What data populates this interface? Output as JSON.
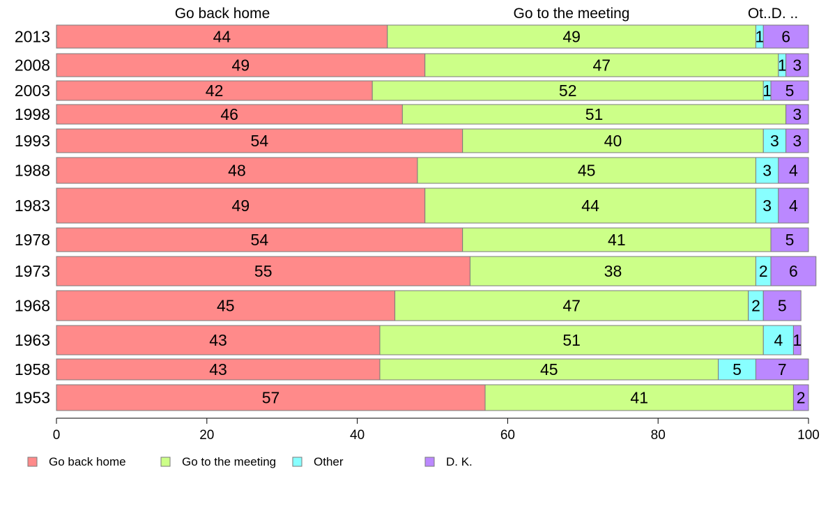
{
  "chart_data": {
    "type": "bar",
    "orientation": "horizontal",
    "stacked": true,
    "title": "",
    "xlabel": "",
    "ylabel": "",
    "xlim": [
      0,
      100
    ],
    "x_ticks": [
      0,
      20,
      40,
      60,
      80,
      100
    ],
    "grid": false,
    "legend_position": "bottom",
    "column_headers": [
      "Go back home",
      "Go to the meeting",
      "Ot..D. .."
    ],
    "categories": [
      "2013",
      "2008",
      "2003",
      "1998",
      "1993",
      "1988",
      "1983",
      "1978",
      "1973",
      "1968",
      "1963",
      "1958",
      "1953"
    ],
    "series": [
      {
        "name": "Go back home",
        "color": "#ff8a8a",
        "values": [
          44,
          49,
          42,
          46,
          54,
          48,
          49,
          54,
          55,
          45,
          43,
          43,
          57
        ]
      },
      {
        "name": "Go to the meeting",
        "color": "#ccff88",
        "values": [
          49,
          47,
          52,
          51,
          40,
          45,
          44,
          41,
          38,
          47,
          51,
          45,
          41
        ]
      },
      {
        "name": "Other",
        "color": "#88ffff",
        "values": [
          1,
          1,
          1,
          0,
          3,
          3,
          3,
          0,
          2,
          2,
          4,
          5,
          0
        ]
      },
      {
        "name": "D. K.",
        "color": "#bb88ff",
        "values": [
          6,
          3,
          5,
          3,
          3,
          4,
          4,
          5,
          6,
          5,
          1,
          7,
          2
        ]
      }
    ]
  }
}
